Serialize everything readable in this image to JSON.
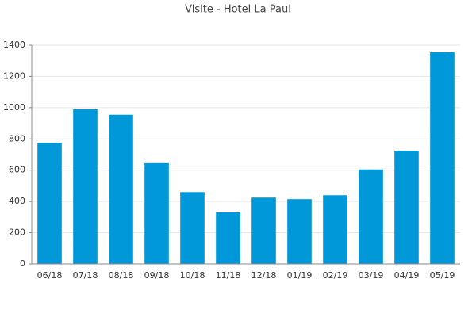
{
  "chart_data": {
    "type": "bar",
    "title": "Visite - Hotel La Paul",
    "categories": [
      "06/18",
      "07/18",
      "08/18",
      "09/18",
      "10/18",
      "11/18",
      "12/18",
      "01/19",
      "02/19",
      "03/19",
      "04/19",
      "05/19"
    ],
    "values": [
      775,
      990,
      955,
      645,
      460,
      330,
      425,
      415,
      440,
      605,
      725,
      1355
    ],
    "color": "#0098d8",
    "ylim": [
      0,
      1400
    ],
    "yticks": [
      0,
      200,
      400,
      600,
      800,
      1000,
      1200,
      1400
    ],
    "grid": true
  }
}
